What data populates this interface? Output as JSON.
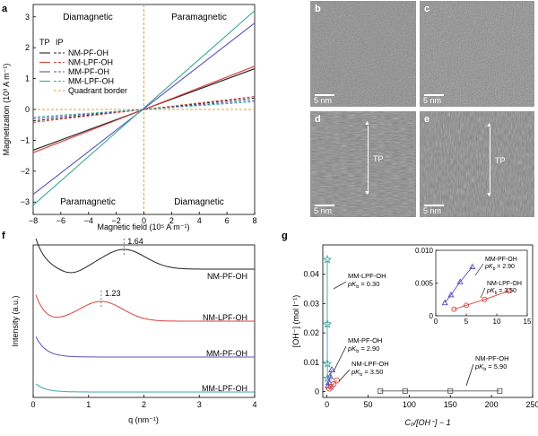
{
  "panels": {
    "a": "a",
    "b": "b",
    "c": "c",
    "d": "d",
    "e": "e",
    "f": "f",
    "g": "g"
  },
  "tem": {
    "scale_label": "5 nm",
    "tp_label": "TP"
  },
  "colors": {
    "black": "#222222",
    "red": "#d9413a",
    "blue": "#5b4fb8",
    "teal": "#3aa89a",
    "quadrant": "#e3a13a"
  },
  "chart_data": [
    {
      "panel": "a",
      "type": "line",
      "xlabel": "Magnetic field (10⁵ A m⁻¹)",
      "ylabel": "Magnetization (10³ A m⁻¹)",
      "xlim": [
        -8,
        8
      ],
      "ylim": [
        -3.4,
        3.4
      ],
      "xticks": [
        -8,
        -6,
        -4,
        -2,
        0,
        2,
        4,
        6,
        8
      ],
      "yticks": [
        -3,
        -2,
        -1,
        0,
        1,
        2,
        3
      ],
      "quadrant_labels": [
        "Diamagnetic",
        "Paramagnetic",
        "Paramagnetic",
        "Diamagnetic"
      ],
      "legend_headers": [
        "TP",
        "IP"
      ],
      "legend_border_label": "Quadrant border",
      "series": [
        {
          "name": "NM-PF-OH",
          "color": "#222222",
          "tp": [
            [
              -8,
              -1.32
            ],
            [
              8,
              1.32
            ]
          ],
          "ip": [
            [
              -8,
              -0.37
            ],
            [
              8,
              0.37
            ]
          ]
        },
        {
          "name": "NM-LPF-OH",
          "color": "#d9413a",
          "tp": [
            [
              -8,
              -1.4
            ],
            [
              8,
              1.4
            ]
          ],
          "ip": [
            [
              -8,
              -0.42
            ],
            [
              8,
              0.42
            ]
          ]
        },
        {
          "name": "MM-PF-OH",
          "color": "#5b4fb8",
          "tp": [
            [
              -8,
              -2.75
            ],
            [
              8,
              2.8
            ]
          ],
          "ip": [
            [
              -8,
              -0.3
            ],
            [
              8,
              0.3
            ]
          ]
        },
        {
          "name": "MM-LPF-OH",
          "color": "#3aa89a",
          "tp": [
            [
              -8,
              -3.1
            ],
            [
              8,
              3.2
            ]
          ],
          "ip": [
            [
              -8,
              -0.25
            ],
            [
              8,
              0.25
            ]
          ]
        }
      ]
    },
    {
      "panel": "f",
      "type": "line",
      "xlabel": "q (nm⁻¹)",
      "ylabel": "Intensity (a.u.)",
      "xlim": [
        0,
        4
      ],
      "xticks": [
        0,
        1,
        2,
        3,
        4
      ],
      "series": [
        {
          "name": "NM-PF-OH",
          "color": "#222222",
          "peak": "1.64",
          "peak_q": 1.64
        },
        {
          "name": "NM-LPF-OH",
          "color": "#d9413a",
          "peak": "1.23",
          "peak_q": 1.23
        },
        {
          "name": "MM-PF-OH",
          "color": "#5b4fb8"
        },
        {
          "name": "MM-LPF-OH",
          "color": "#3aa89a"
        }
      ]
    },
    {
      "panel": "g",
      "type": "scatter",
      "xlabel": "C₀/[OH⁻] − 1",
      "ylabel": "[OH⁻] (mol l⁻¹)",
      "xlim": [
        -5,
        250
      ],
      "ylim": [
        -0.002,
        0.05
      ],
      "xticks": [
        0,
        50,
        100,
        150,
        200,
        250
      ],
      "yticks": [
        0,
        0.01,
        0.02,
        0.03,
        0.04
      ],
      "series": [
        {
          "name": "MM-LPF-OH",
          "annotation": "MM-LPF-OH",
          "pk_label": "pK",
          "pk_sub": "b",
          "pk_value": "= 0.30",
          "color": "#3aa89a",
          "marker": "star",
          "x": [
            0.4,
            0.5,
            0.6,
            0.7
          ],
          "y": [
            0.045,
            0.023,
            0.0095,
            0.0045
          ]
        },
        {
          "name": "MM-PF-OH",
          "annotation": "MM-PF-OH",
          "pk_label": "pK",
          "pk_sub": "b",
          "pk_value": "= 2.90",
          "color": "#5b4fb8",
          "marker": "triangle",
          "x": [
            1.5,
            2.5,
            4,
            6
          ],
          "y": [
            0.002,
            0.0032,
            0.0052,
            0.0075
          ]
        },
        {
          "name": "NM-LPF-OH",
          "annotation": "NM-LPF-OH",
          "pk_label": "pK",
          "pk_sub": "b",
          "pk_value": "= 3.50",
          "color": "#d9413a",
          "marker": "circle",
          "x": [
            3,
            5,
            8,
            12
          ],
          "y": [
            0.001,
            0.0016,
            0.0025,
            0.0038
          ]
        },
        {
          "name": "NM-PF-OH",
          "annotation": "NM-PF-OH",
          "pk_label": "pK",
          "pk_sub": "b",
          "pk_value": "= 5.90",
          "color": "#555555",
          "marker": "square",
          "x": [
            65,
            95,
            150,
            210
          ],
          "y": [
            0.0002,
            0.0002,
            0.0002,
            0.0002
          ]
        }
      ],
      "inset": {
        "xlim": [
          0,
          15
        ],
        "ylim": [
          0,
          0.01
        ],
        "xticks": [
          0,
          5,
          10,
          15
        ],
        "yticks": [
          0,
          0.005,
          0.01
        ],
        "ytick_labels": [
          "0",
          "0.005",
          "0.010"
        ],
        "labels": [
          {
            "name": "MM-PF-OH",
            "pk_label": "pK",
            "pk_sub": "b",
            "pk_value": "= 2.90"
          },
          {
            "name": "NM-LPF-OH",
            "pk_label": "pK",
            "pk_sub": "b",
            "pk_value": "= 3.50"
          }
        ]
      }
    }
  ]
}
